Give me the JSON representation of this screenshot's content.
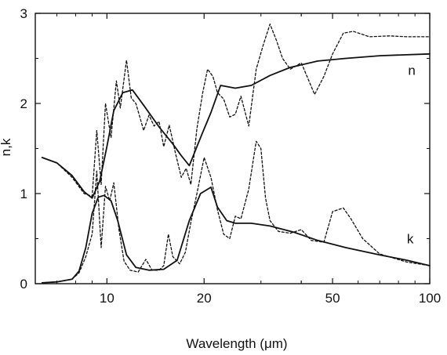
{
  "chart_data": {
    "type": "line",
    "title": "",
    "xlabel": "Wavelength (μm)",
    "ylabel": "n,k",
    "x_scale": "log",
    "xlim": [
      6,
      100
    ],
    "ylim": [
      0,
      3
    ],
    "x_ticks": [
      10,
      20,
      50,
      100
    ],
    "x_tick_labels": [
      "10",
      "20",
      "50",
      "100"
    ],
    "y_ticks": [
      0,
      1,
      2,
      3
    ],
    "y_tick_labels": [
      "0",
      "1",
      "2",
      "3"
    ],
    "grid": false,
    "legend": "none",
    "series": [
      {
        "name": "n",
        "style": "solid",
        "x": [
          6.3,
          7.0,
          7.8,
          8.5,
          9.0,
          9.5,
          10.0,
          10.5,
          11.2,
          12.0,
          13.0,
          14.5,
          16.0,
          17.0,
          18.0,
          19.5,
          21.0,
          22.5,
          25.0,
          28.0,
          32.0,
          37.0,
          45.0,
          55.0,
          70.0,
          100.0
        ],
        "y": [
          1.4,
          1.34,
          1.2,
          1.02,
          0.95,
          1.14,
          1.52,
          1.92,
          2.12,
          2.15,
          1.98,
          1.74,
          1.55,
          1.42,
          1.31,
          1.62,
          1.9,
          2.2,
          2.17,
          2.2,
          2.31,
          2.4,
          2.47,
          2.5,
          2.53,
          2.55
        ]
      },
      {
        "name": "n",
        "style": "dashed",
        "x": [
          6.3,
          7.0,
          7.8,
          8.5,
          9.0,
          9.3,
          9.6,
          9.9,
          10.3,
          10.7,
          11.0,
          11.5,
          11.9,
          12.3,
          13.0,
          13.5,
          14.0,
          14.5,
          15.0,
          15.6,
          16.3,
          17.0,
          17.6,
          18.2,
          19.0,
          19.8,
          20.5,
          21.3,
          22.0,
          23.0,
          24.0,
          25.0,
          26.0,
          27.5,
          29.0,
          30.5,
          32.0,
          33.5,
          35.0,
          37.0,
          40.0,
          44.0,
          47.0,
          50.0,
          54.0,
          58.0,
          65.0,
          75.0,
          85.0,
          100.0
        ],
        "y": [
          1.4,
          1.34,
          1.18,
          1.0,
          0.97,
          1.7,
          1.1,
          2.0,
          1.62,
          2.25,
          1.95,
          2.48,
          2.06,
          2.0,
          1.7,
          1.87,
          1.75,
          1.8,
          1.52,
          1.76,
          1.45,
          1.18,
          1.28,
          1.1,
          1.72,
          2.12,
          2.38,
          2.3,
          2.12,
          2.05,
          1.85,
          1.88,
          2.08,
          1.75,
          2.38,
          2.65,
          2.88,
          2.7,
          2.5,
          2.38,
          2.45,
          2.1,
          2.3,
          2.55,
          2.78,
          2.8,
          2.74,
          2.75,
          2.74,
          2.74
        ]
      },
      {
        "name": "k",
        "style": "solid",
        "x": [
          6.3,
          7.0,
          7.8,
          8.2,
          8.6,
          9.0,
          9.4,
          9.8,
          10.3,
          10.8,
          11.5,
          12.3,
          13.5,
          15.0,
          16.5,
          18.0,
          19.5,
          21.0,
          22.0,
          23.5,
          25.0,
          28.0,
          32.0,
          38.0,
          45.0,
          55.0,
          70.0,
          85.0,
          100.0
        ],
        "y": [
          0.01,
          0.02,
          0.05,
          0.14,
          0.4,
          0.78,
          0.96,
          0.98,
          0.92,
          0.7,
          0.32,
          0.18,
          0.15,
          0.16,
          0.26,
          0.7,
          1.0,
          1.07,
          0.85,
          0.7,
          0.67,
          0.67,
          0.64,
          0.57,
          0.48,
          0.4,
          0.32,
          0.26,
          0.2
        ]
      },
      {
        "name": "k",
        "style": "dashed",
        "x": [
          6.3,
          7.0,
          7.8,
          8.2,
          8.6,
          9.0,
          9.3,
          9.6,
          9.9,
          10.2,
          10.5,
          10.9,
          11.3,
          11.8,
          12.5,
          13.2,
          13.8,
          14.5,
          15.0,
          15.5,
          16.0,
          16.8,
          17.5,
          18.2,
          19.0,
          20.0,
          21.0,
          22.0,
          23.0,
          24.0,
          25.0,
          26.0,
          27.5,
          29.0,
          30.0,
          31.0,
          32.0,
          34.0,
          37.0,
          40.0,
          43.0,
          47.0,
          50.0,
          54.0,
          57.0,
          62.0,
          70.0,
          85.0,
          100.0
        ],
        "y": [
          0.01,
          0.02,
          0.05,
          0.12,
          0.3,
          0.55,
          1.25,
          0.4,
          1.08,
          0.92,
          1.12,
          0.6,
          0.25,
          0.15,
          0.13,
          0.27,
          0.15,
          0.15,
          0.2,
          0.55,
          0.3,
          0.22,
          0.35,
          0.68,
          1.0,
          1.4,
          1.18,
          0.82,
          0.55,
          0.5,
          0.75,
          0.72,
          1.05,
          1.58,
          1.5,
          0.95,
          0.7,
          0.58,
          0.56,
          0.6,
          0.48,
          0.46,
          0.8,
          0.84,
          0.72,
          0.5,
          0.33,
          0.24,
          0.2
        ]
      }
    ],
    "annotations": [
      {
        "text": "n",
        "x": 88,
        "y": 2.37
      },
      {
        "text": "k",
        "x": 87,
        "y": 0.5
      }
    ]
  }
}
